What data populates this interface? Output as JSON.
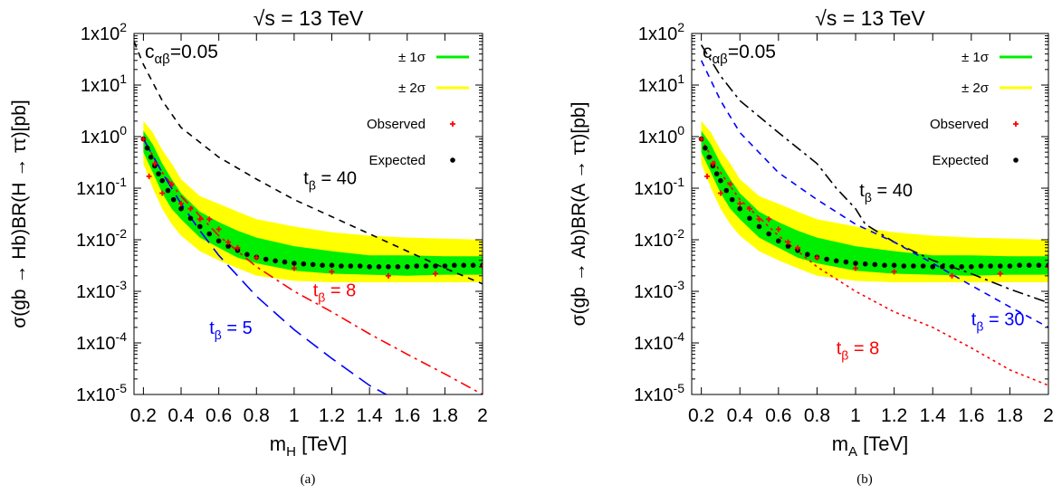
{
  "chart_data": [
    {
      "type": "line",
      "title": "√s = 13 TeV",
      "panel_caption": "(a)",
      "xlabel": "m_H [TeV]",
      "ylabel": "σ(gb → Hb)BR(H → ττ)[pb]",
      "yscale": "log",
      "xlim": [
        0.15,
        2.0
      ],
      "ylim": [
        1e-05,
        100
      ],
      "xticks": [
        0.2,
        0.4,
        0.6,
        0.8,
        1,
        1.2,
        1.4,
        1.6,
        1.8,
        2
      ],
      "xtick_labels": [
        "0.2",
        "0.4",
        "0.6",
        "0.8",
        "1",
        "1.2",
        "1.4",
        "1.6",
        "1.8",
        "2"
      ],
      "yticks": [
        1e-05,
        0.0001,
        0.001,
        0.01,
        0.1,
        1,
        10,
        100
      ],
      "ytick_labels": [
        "1x10-5",
        "1x10-4",
        "1x10-3",
        "1x10-2",
        "1x10-1",
        "1x100",
        "1x101",
        "1x102"
      ],
      "annotation": "cαβ=0.05",
      "legend_position": "top-right",
      "legend": [
        {
          "label": "± 1σ",
          "color": "#00ee00"
        },
        {
          "label": "± 2σ",
          "color": "#ffff00"
        },
        {
          "label": "Observed",
          "color": "#ff0000"
        },
        {
          "label": "Expected",
          "color": "#000000"
        }
      ],
      "band_x": [
        0.2,
        0.25,
        0.3,
        0.35,
        0.4,
        0.5,
        0.6,
        0.7,
        0.8,
        1.0,
        1.2,
        1.4,
        1.6,
        1.8,
        2.0
      ],
      "band_2sigma_low": [
        0.3,
        0.1,
        0.04,
        0.02,
        0.012,
        0.006,
        0.004,
        0.0028,
        0.002,
        0.0016,
        0.0015,
        0.0015,
        0.0015,
        0.0015,
        0.0015
      ],
      "band_2sigma_high": [
        2.0,
        1.2,
        0.55,
        0.3,
        0.15,
        0.07,
        0.05,
        0.035,
        0.025,
        0.018,
        0.014,
        0.012,
        0.011,
        0.0105,
        0.01
      ],
      "band_1sigma_low": [
        0.5,
        0.2,
        0.08,
        0.04,
        0.025,
        0.011,
        0.007,
        0.0045,
        0.0035,
        0.0025,
        0.0022,
        0.0021,
        0.002,
        0.0021,
        0.0021
      ],
      "band_1sigma_high": [
        1.3,
        0.7,
        0.3,
        0.15,
        0.08,
        0.035,
        0.022,
        0.015,
        0.011,
        0.0075,
        0.006,
        0.005,
        0.005,
        0.0048,
        0.0048
      ],
      "expected": {
        "x": [
          0.2,
          0.22,
          0.24,
          0.26,
          0.28,
          0.3,
          0.33,
          0.36,
          0.4,
          0.45,
          0.5,
          0.55,
          0.6,
          0.65,
          0.7,
          0.75,
          0.8,
          0.85,
          0.9,
          0.95,
          1.0,
          1.05,
          1.1,
          1.15,
          1.2,
          1.25,
          1.3,
          1.35,
          1.4,
          1.45,
          1.5,
          1.55,
          1.6,
          1.65,
          1.7,
          1.75,
          1.8,
          1.85,
          1.9,
          1.95,
          2.0
        ],
        "y": [
          0.9,
          0.6,
          0.4,
          0.27,
          0.19,
          0.14,
          0.09,
          0.06,
          0.04,
          0.026,
          0.018,
          0.013,
          0.0095,
          0.0075,
          0.0062,
          0.0052,
          0.0046,
          0.0042,
          0.0039,
          0.0037,
          0.0035,
          0.0034,
          0.0033,
          0.0032,
          0.0032,
          0.0031,
          0.0031,
          0.0031,
          0.003,
          0.003,
          0.003,
          0.003,
          0.003,
          0.0031,
          0.0031,
          0.0031,
          0.0031,
          0.0032,
          0.0032,
          0.0032,
          0.0032
        ]
      },
      "observed": {
        "x": [
          0.2,
          0.23,
          0.26,
          0.3,
          0.35,
          0.4,
          0.45,
          0.5,
          0.55,
          0.6,
          0.65,
          0.7,
          0.8,
          1.0,
          1.2,
          1.5,
          1.75,
          2.0
        ],
        "y": [
          0.9,
          0.17,
          0.3,
          0.08,
          0.12,
          0.05,
          0.04,
          0.025,
          0.025,
          0.016,
          0.009,
          0.007,
          0.0045,
          0.0028,
          0.0024,
          0.002,
          0.0022,
          0.003
        ]
      },
      "lines": [
        {
          "name": "tβ = 40",
          "color": "#000000",
          "dash": "dashed",
          "x": [
            0.15,
            0.2,
            0.3,
            0.4,
            0.6,
            0.8,
            1.0,
            1.2,
            1.4,
            1.6,
            1.8,
            2.0
          ],
          "y": [
            70,
            25,
            5,
            1.5,
            0.4,
            0.15,
            0.06,
            0.028,
            0.013,
            0.006,
            0.0028,
            0.0014
          ]
        },
        {
          "name": "tβ = 8",
          "color": "#ff0000",
          "dash": "dashdot",
          "x": [
            0.2,
            0.3,
            0.4,
            0.6,
            0.8,
            1.0,
            1.2,
            1.4,
            1.6,
            1.8,
            2.0
          ],
          "y": [
            0.9,
            0.2,
            0.07,
            0.012,
            0.003,
            0.001,
            0.0004,
            0.00015,
            6e-05,
            2.5e-05,
            1e-05
          ]
        },
        {
          "name": "tβ = 5",
          "color": "#0000ff",
          "dash": "longdash",
          "x": [
            0.2,
            0.3,
            0.4,
            0.5,
            0.6,
            0.8,
            1.0,
            1.2,
            1.4,
            1.6
          ],
          "y": [
            0.9,
            0.2,
            0.05,
            0.015,
            0.005,
            0.0008,
            0.00018,
            5e-05,
            1.5e-05,
            6e-06
          ]
        }
      ],
      "line_labels": [
        {
          "text": "tβ = 40",
          "x": 1.05,
          "y": 0.12,
          "color": "#000000"
        },
        {
          "text": "tβ = 8",
          "x": 1.1,
          "y": 0.0008,
          "color": "#ff0000"
        },
        {
          "text": "tβ = 5",
          "x": 0.55,
          "y": 0.00015,
          "color": "#0000ff"
        }
      ]
    },
    {
      "type": "line",
      "title": "√s = 13 TeV",
      "panel_caption": "(b)",
      "xlabel": "m_A [TeV]",
      "ylabel": "σ(gb → Ab)BR(A → ττ)[pb]",
      "yscale": "log",
      "xlim": [
        0.15,
        2.0
      ],
      "ylim": [
        1e-05,
        100
      ],
      "xticks": [
        0.2,
        0.4,
        0.6,
        0.8,
        1,
        1.2,
        1.4,
        1.6,
        1.8,
        2
      ],
      "xtick_labels": [
        "0.2",
        "0.4",
        "0.6",
        "0.8",
        "1",
        "1.2",
        "1.4",
        "1.6",
        "1.8",
        "2"
      ],
      "yticks": [
        1e-05,
        0.0001,
        0.001,
        0.01,
        0.1,
        1,
        10,
        100
      ],
      "ytick_labels": [
        "1x10-5",
        "1x10-4",
        "1x10-3",
        "1x10-2",
        "1x10-1",
        "1x100",
        "1x101",
        "1x102"
      ],
      "annotation": "cαβ=0.05",
      "legend_position": "top-right",
      "legend": [
        {
          "label": "± 1σ",
          "color": "#00ee00"
        },
        {
          "label": "± 2σ",
          "color": "#ffff00"
        },
        {
          "label": "Observed",
          "color": "#ff0000"
        },
        {
          "label": "Expected",
          "color": "#000000"
        }
      ],
      "band_x": [
        0.2,
        0.25,
        0.3,
        0.35,
        0.4,
        0.5,
        0.6,
        0.7,
        0.8,
        1.0,
        1.2,
        1.4,
        1.6,
        1.8,
        2.0
      ],
      "band_2sigma_low": [
        0.3,
        0.1,
        0.04,
        0.02,
        0.012,
        0.006,
        0.004,
        0.0028,
        0.002,
        0.0016,
        0.0015,
        0.0015,
        0.0015,
        0.0015,
        0.0015
      ],
      "band_2sigma_high": [
        2.0,
        1.2,
        0.55,
        0.3,
        0.15,
        0.07,
        0.05,
        0.035,
        0.025,
        0.018,
        0.014,
        0.012,
        0.011,
        0.0105,
        0.01
      ],
      "band_1sigma_low": [
        0.5,
        0.2,
        0.08,
        0.04,
        0.025,
        0.011,
        0.007,
        0.0045,
        0.0035,
        0.0025,
        0.0022,
        0.0021,
        0.002,
        0.0021,
        0.0021
      ],
      "band_1sigma_high": [
        1.3,
        0.7,
        0.3,
        0.15,
        0.08,
        0.035,
        0.022,
        0.015,
        0.011,
        0.0075,
        0.006,
        0.005,
        0.005,
        0.0048,
        0.0048
      ],
      "expected": {
        "x": [
          0.2,
          0.22,
          0.24,
          0.26,
          0.28,
          0.3,
          0.33,
          0.36,
          0.4,
          0.45,
          0.5,
          0.55,
          0.6,
          0.65,
          0.7,
          0.75,
          0.8,
          0.85,
          0.9,
          0.95,
          1.0,
          1.05,
          1.1,
          1.15,
          1.2,
          1.25,
          1.3,
          1.35,
          1.4,
          1.45,
          1.5,
          1.55,
          1.6,
          1.65,
          1.7,
          1.75,
          1.8,
          1.85,
          1.9,
          1.95,
          2.0
        ],
        "y": [
          0.9,
          0.6,
          0.4,
          0.27,
          0.19,
          0.14,
          0.09,
          0.06,
          0.04,
          0.026,
          0.018,
          0.013,
          0.0095,
          0.0075,
          0.0062,
          0.0052,
          0.0046,
          0.0042,
          0.0039,
          0.0037,
          0.0035,
          0.0034,
          0.0033,
          0.0032,
          0.0032,
          0.0031,
          0.0031,
          0.0031,
          0.003,
          0.003,
          0.003,
          0.003,
          0.003,
          0.0031,
          0.0031,
          0.0031,
          0.0031,
          0.0032,
          0.0032,
          0.0032,
          0.0032
        ]
      },
      "observed": {
        "x": [
          0.2,
          0.23,
          0.26,
          0.3,
          0.35,
          0.4,
          0.45,
          0.5,
          0.55,
          0.6,
          0.65,
          0.7,
          0.8,
          1.0,
          1.2,
          1.5,
          1.75,
          2.0
        ],
        "y": [
          0.9,
          0.17,
          0.3,
          0.08,
          0.12,
          0.05,
          0.04,
          0.025,
          0.025,
          0.016,
          0.009,
          0.007,
          0.0045,
          0.0028,
          0.0024,
          0.002,
          0.0022,
          0.003
        ]
      },
      "lines": [
        {
          "name": "tβ = 40",
          "color": "#000000",
          "dash": "dashdot",
          "x": [
            0.2,
            0.3,
            0.4,
            0.6,
            0.8,
            0.9,
            1.0,
            1.05,
            1.2,
            1.4,
            1.6,
            1.8,
            2.0
          ],
          "y": [
            60,
            15,
            5,
            1.2,
            0.3,
            0.1,
            0.04,
            0.02,
            0.009,
            0.004,
            0.0022,
            0.0011,
            0.0006
          ]
        },
        {
          "name": "tβ = 30",
          "color": "#0000ff",
          "dash": "dashed",
          "x": [
            0.2,
            0.3,
            0.4,
            0.6,
            0.8,
            1.0,
            1.2,
            1.4,
            1.6,
            1.8,
            2.0
          ],
          "y": [
            30,
            5,
            1.2,
            0.2,
            0.06,
            0.02,
            0.009,
            0.0035,
            0.0013,
            0.0005,
            0.0002
          ]
        },
        {
          "name": "tβ = 8",
          "color": "#ff0000",
          "dash": "dotted",
          "x": [
            0.2,
            0.3,
            0.4,
            0.6,
            0.8,
            1.0,
            1.2,
            1.4,
            1.6,
            1.8,
            2.0
          ],
          "y": [
            0.9,
            0.2,
            0.06,
            0.012,
            0.003,
            0.001,
            0.0004,
            0.0002,
            8e-05,
            3e-05,
            1.5e-05
          ]
        }
      ],
      "line_labels": [
        {
          "text": "tβ = 40",
          "x": 1.02,
          "y": 0.07,
          "color": "#000000"
        },
        {
          "text": "tβ = 30",
          "x": 1.6,
          "y": 0.00022,
          "color": "#0000ff"
        },
        {
          "text": "tβ = 8",
          "x": 0.9,
          "y": 6e-05,
          "color": "#ff0000"
        }
      ]
    }
  ]
}
